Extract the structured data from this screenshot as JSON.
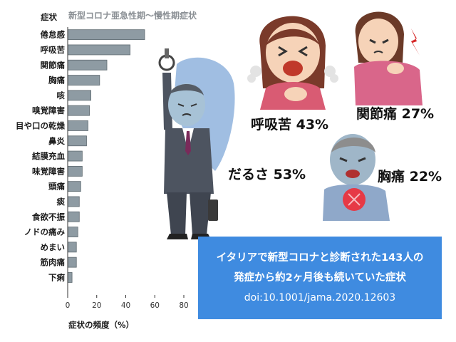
{
  "chart_data": {
    "type": "bar",
    "orientation": "horizontal",
    "title": "新型コロナ亜急性期〜慢性期症状",
    "category_header": "症状",
    "categories": [
      "倦怠感",
      "呼吸苦",
      "関節痛",
      "胸痛",
      "咳",
      "嗅覚障害",
      "目や口の乾燥",
      "鼻炎",
      "結膜充血",
      "味覚障害",
      "頭痛",
      "痰",
      "食欲不振",
      "ノドの痛み",
      "めまい",
      "筋肉痛",
      "下痢"
    ],
    "values": [
      53,
      43,
      27,
      22,
      16,
      15,
      14,
      13,
      10,
      10,
      9,
      8,
      8,
      7,
      6,
      6,
      3
    ],
    "xlabel": "症状の頻度（%）",
    "ylabel": "",
    "xlim": [
      0,
      80
    ],
    "xticks": [
      0,
      20,
      40,
      60,
      80
    ],
    "grid": false,
    "bar_color": "#8e9ba3"
  },
  "callouts": {
    "fatigue": "だるさ 53%",
    "dyspnea": "呼吸苦 43%",
    "joint": "関節痛 27%",
    "chest": "胸痛 22%"
  },
  "info_box": {
    "line1": "イタリアで新型コロナと診断された143人の",
    "line2": "発症から約2ヶ月後も続いていた症状",
    "doi": "doi:10.1001/jama.2020.12603",
    "bg_color": "#3f8be0"
  },
  "illustrations": [
    "tired-commuter-illustration",
    "woman-coughing-illustration",
    "woman-shoulder-pain-illustration",
    "man-chest-pain-illustration"
  ]
}
